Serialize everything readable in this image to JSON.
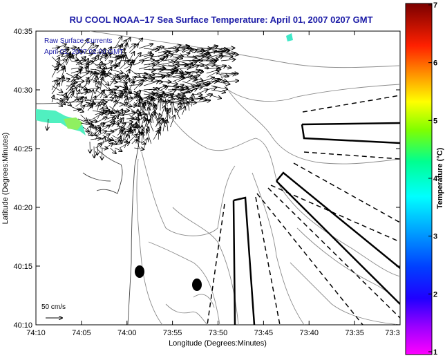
{
  "title": "RU COOL  NOAA–17  Sea Surface Temperature:  April 01, 2007 0207 GMT",
  "inset": {
    "line1": "Raw Surface Currents",
    "line2": "April 01, 2007 02:00 GMT"
  },
  "scale_label": "50 cm/s",
  "axes": {
    "xlabel": "Longitude (Degrees:Minutes)",
    "ylabel": "Latitude (Degrees:Minutes)",
    "xticks": [
      "74:10",
      "74:05",
      "74:00",
      "73:55",
      "73:50",
      "73:45",
      "73:40",
      "73:35",
      "73:3"
    ],
    "yticks": [
      "40:35",
      "40:30",
      "40:25",
      "40:20",
      "40:15",
      "40:10"
    ]
  },
  "colorbar": {
    "label": "Temperature (°C)",
    "ticks": [
      "7",
      "6",
      "5",
      "4",
      "3",
      "2",
      "1"
    ],
    "min": 1,
    "max": 7,
    "colors": [
      "#ff00ff",
      "#7a00ff",
      "#0000ff",
      "#00a0ff",
      "#00ffff",
      "#00ff80",
      "#80ff00",
      "#ffff00",
      "#ff8000",
      "#ff0000",
      "#800000"
    ]
  },
  "sst_patches_color": [
    "#40ffd0",
    "#60ff80",
    "#a0ff40"
  ]
}
